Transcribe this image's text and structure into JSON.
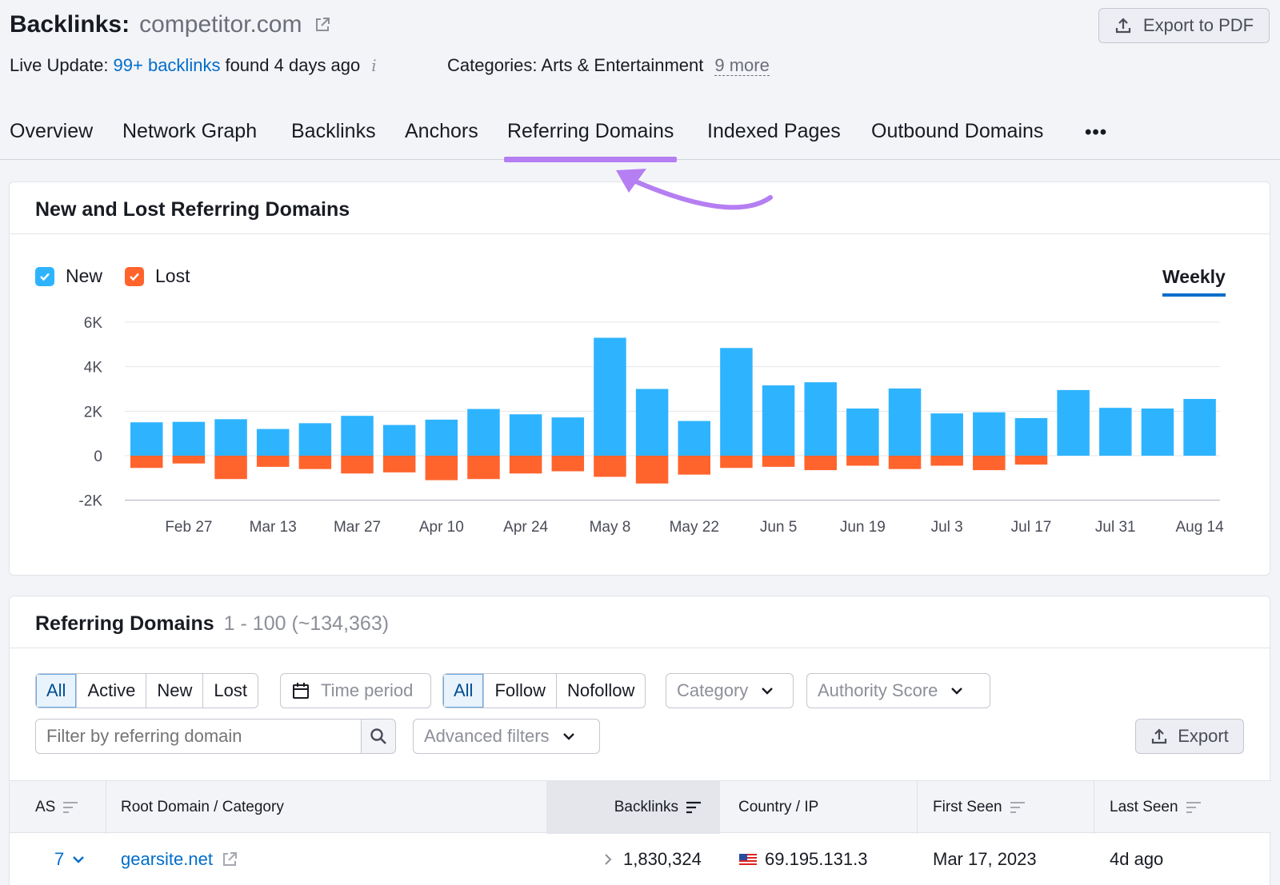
{
  "header": {
    "title": "Backlinks:",
    "domain": "competitor.com",
    "export_pdf": "Export to PDF",
    "live_update_label": "Live Update:",
    "live_update_link": "99+ backlinks",
    "live_update_suffix": "found 4 days ago",
    "info_glyph": "i",
    "categories_label": "Categories: Arts & Entertainment",
    "categories_more": "9 more"
  },
  "tabs": [
    {
      "label": "Overview"
    },
    {
      "label": "Network Graph"
    },
    {
      "label": "Backlinks"
    },
    {
      "label": "Anchors"
    },
    {
      "label": "Referring Domains",
      "active": true
    },
    {
      "label": "Indexed Pages"
    },
    {
      "label": "Outbound Domains"
    }
  ],
  "tabs_more": "•••",
  "chart_card": {
    "title": "New and Lost Referring Domains",
    "legend_new": "New",
    "legend_lost": "Lost",
    "period": "Weekly"
  },
  "chart_data": {
    "type": "bar",
    "stacked": true,
    "categories_labels": [
      "Feb 27",
      "Mar 13",
      "Mar 27",
      "Apr 10",
      "Apr 24",
      "May 8",
      "May 22",
      "Jun 5",
      "Jun 19",
      "Jul 3",
      "Jul 17",
      "Jul 31",
      "Aug 14"
    ],
    "y_ticks": [
      "6K",
      "4K",
      "2K",
      "0",
      "-2K"
    ],
    "ylim": [
      -2000,
      6000
    ],
    "series": [
      {
        "name": "New",
        "color": "#2eb4ff",
        "values": [
          1500,
          1520,
          1640,
          1200,
          1460,
          1790,
          1380,
          1620,
          2100,
          1860,
          1720,
          5300,
          3000,
          1560,
          4840,
          3160,
          3300,
          2120,
          3020,
          1900,
          1950,
          1690,
          2950,
          2150,
          2120,
          2550
        ]
      },
      {
        "name": "Lost",
        "color": "#ff642d",
        "values": [
          -550,
          -350,
          -1050,
          -500,
          -600,
          -800,
          -750,
          -1100,
          -1050,
          -800,
          -700,
          -950,
          -1250,
          -850,
          -550,
          -500,
          -650,
          -450,
          -600,
          -450,
          -650,
          -400,
          0,
          0,
          0,
          0
        ]
      }
    ],
    "grid": true,
    "legend_position": "top-left"
  },
  "table_card": {
    "title": "Referring Domains",
    "count": "1 - 100 (~134,363)",
    "status_filters": [
      "All",
      "Active",
      "New",
      "Lost"
    ],
    "time_period": "Time period",
    "link_filters": [
      "All",
      "Follow",
      "Nofollow"
    ],
    "category": "Category",
    "authority_score": "Authority Score",
    "filter_placeholder": "Filter by referring domain",
    "advanced_filters": "Advanced filters",
    "export": "Export",
    "columns": [
      "AS",
      "Root Domain / Category",
      "Backlinks",
      "Country / IP",
      "First Seen",
      "Last Seen"
    ],
    "rows": [
      {
        "as": "7",
        "domain": "gearsite.net",
        "backlinks": "1,830,324",
        "ip": "69.195.131.3",
        "first_seen": "Mar 17, 2023",
        "last_seen": "4d ago"
      }
    ]
  }
}
